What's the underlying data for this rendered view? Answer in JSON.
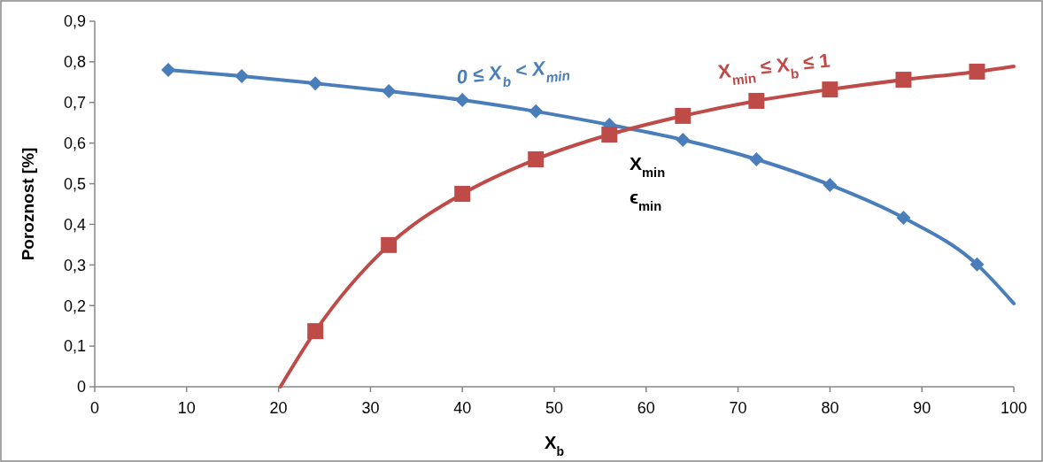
{
  "chart_data": {
    "type": "line",
    "xlabel": "X$_{b}$",
    "ylabel": "Poroznost [%]",
    "xlim": [
      0,
      100
    ],
    "xticks": [
      0,
      10,
      20,
      30,
      40,
      50,
      60,
      70,
      80,
      90,
      100
    ],
    "ylim": [
      0,
      0.9
    ],
    "yticks": [
      {
        "value": 0,
        "label": "0"
      },
      {
        "value": 0.1,
        "label": "0,1"
      },
      {
        "value": 0.2,
        "label": "0,2"
      },
      {
        "value": 0.3,
        "label": "0,3"
      },
      {
        "value": 0.4,
        "label": "0,4"
      },
      {
        "value": 0.5,
        "label": "0,5"
      },
      {
        "value": 0.6,
        "label": "0,6"
      },
      {
        "value": 0.7,
        "label": "0,7"
      },
      {
        "value": 0.8,
        "label": "0,8"
      },
      {
        "value": 0.9,
        "label": "0,9"
      }
    ],
    "grid": false,
    "line_style": "solid",
    "series": [
      {
        "color": "#4a7ebb",
        "marker": "none",
        "x": [
          8,
          16,
          24,
          32,
          40,
          48,
          56,
          64,
          72,
          80,
          88,
          96,
          100
        ],
        "values": [
          0.78,
          0.765,
          0.747,
          0.728,
          0.706,
          0.678,
          0.645,
          0.608,
          0.56,
          0.497,
          0.416,
          0.301,
          0.205
        ]
      },
      {
        "type": "scatter",
        "name": "0 ≤ X$_{b}$ < X$_{min}$",
        "color": "#4a7ebb",
        "marker": "diamond",
        "x": [
          8,
          16,
          24,
          32,
          40,
          48,
          56,
          64,
          72,
          80,
          88,
          96
        ],
        "values": [
          0.78,
          0.765,
          0.747,
          0.728,
          0.706,
          0.678,
          0.645,
          0.608,
          0.56,
          0.497,
          0.416,
          0.301
        ]
      },
      {
        "color": "#be4b48",
        "marker": "none",
        "x": [
          20.2,
          24,
          32,
          40,
          48,
          56,
          64,
          72,
          80,
          88,
          96,
          100
        ],
        "values": [
          0,
          0.137,
          0.349,
          0.475,
          0.56,
          0.621,
          0.667,
          0.704,
          0.732,
          0.756,
          0.776,
          0.789
        ]
      },
      {
        "type": "scatter",
        "name": "X$_{min}$ ≤ X$_{b}$ ≤ 1",
        "color": "#be4b48",
        "marker": "square",
        "x": [
          24,
          32,
          40,
          48,
          56,
          64,
          72,
          80,
          88,
          96
        ],
        "values": [
          0.137,
          0.349,
          0.475,
          0.56,
          0.621,
          0.667,
          0.704,
          0.732,
          0.756,
          0.776
        ]
      }
    ],
    "annotations": [
      "X$_{min}$",
      "ϵ$_{min}$"
    ]
  }
}
